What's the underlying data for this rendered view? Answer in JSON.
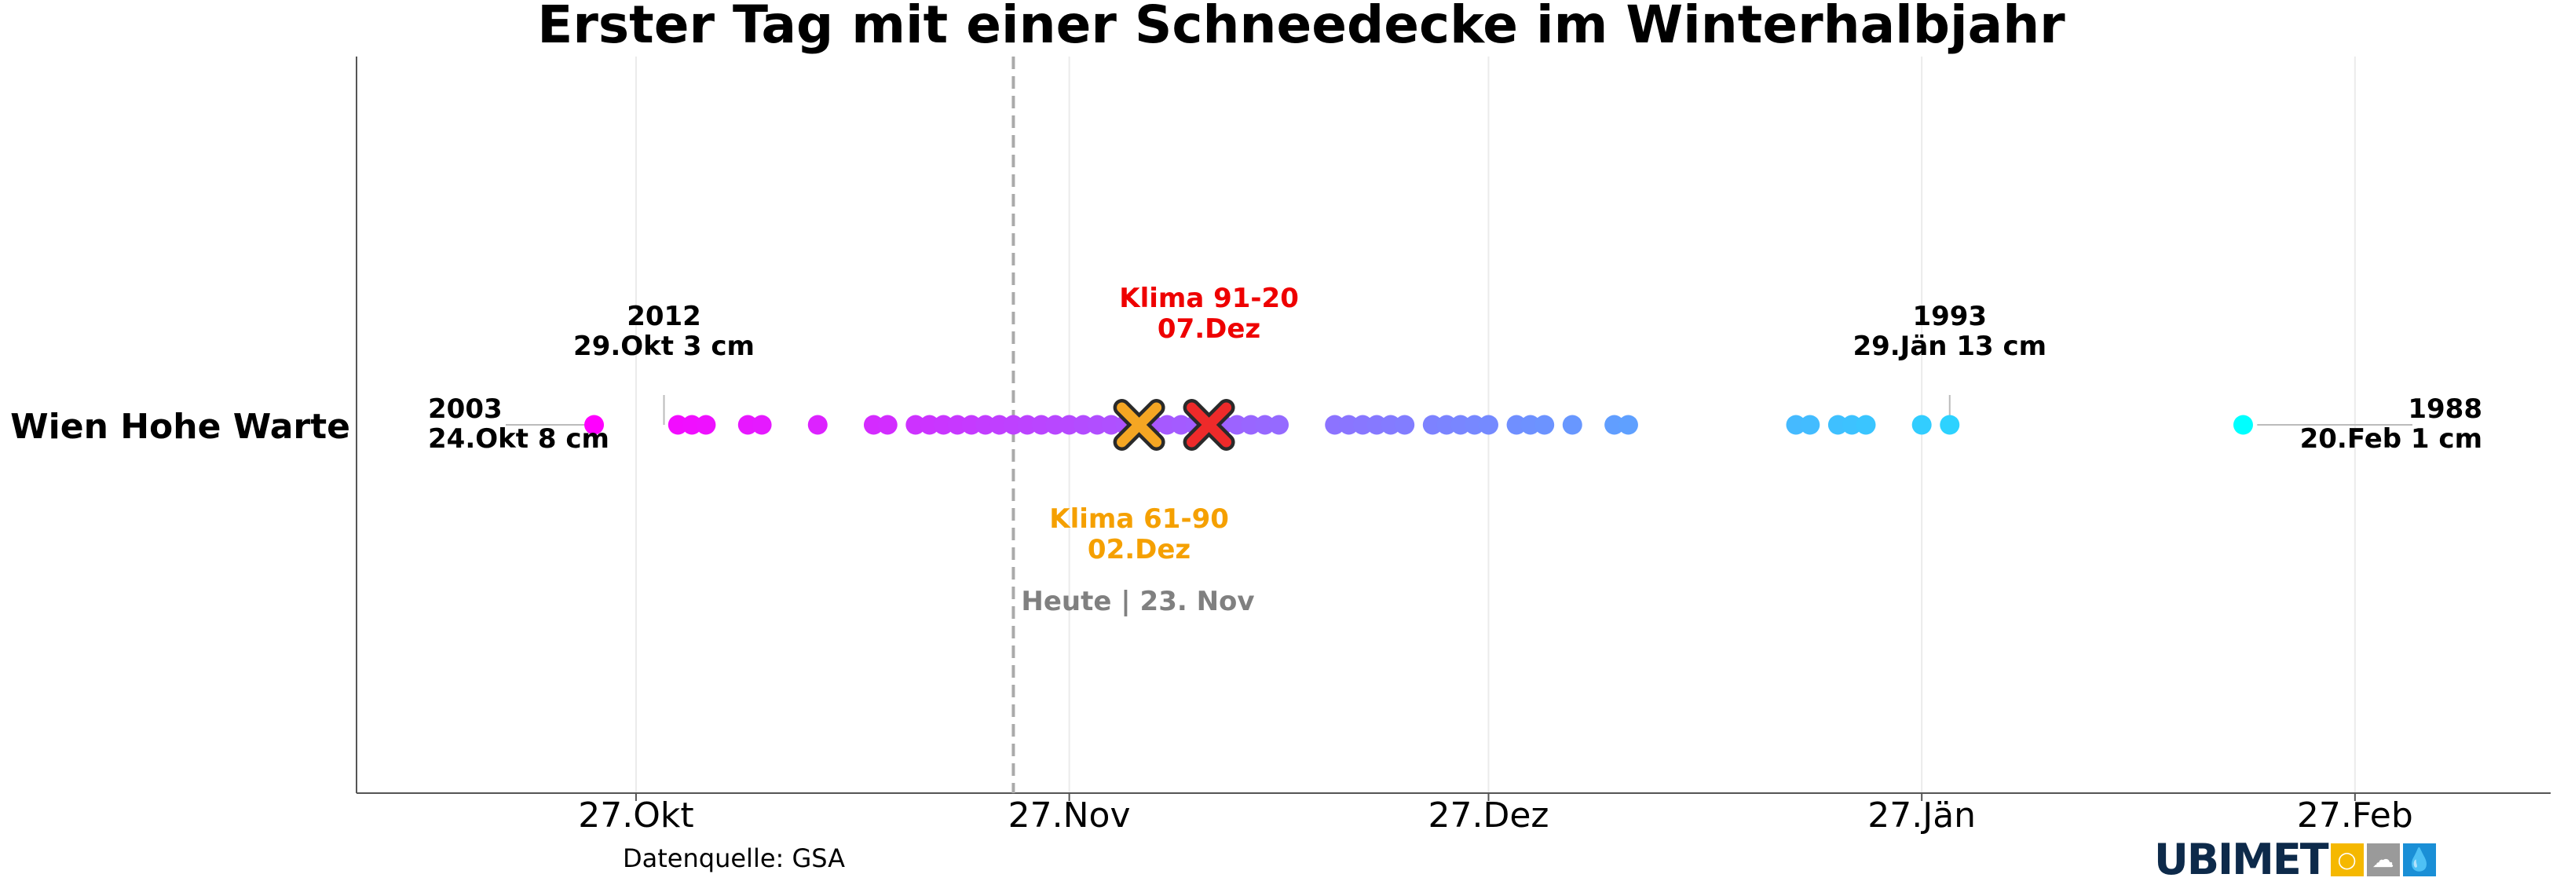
{
  "chart_data": {
    "type": "scatter",
    "title": "Erster Tag mit einer Schneedecke im Winterhalbjahr",
    "station": "Wien Hohe Warte",
    "source": "Datenquelle: GSA",
    "logo": "UBIMET",
    "x_ticks": [
      "27.Okt",
      "27.Nov",
      "27.Dez",
      "27.Jän",
      "27.Feb"
    ],
    "x_tick_dates": [
      "2022-10-27",
      "2022-11-27",
      "2022-12-27",
      "2023-01-27",
      "2023-02-27"
    ],
    "x_range": [
      "2022-10-07",
      "2023-03-13"
    ],
    "grid": "vertical",
    "colormap": "cool",
    "points": [
      "2022-10-24",
      "2022-10-30",
      "2022-10-31",
      "2022-11-01",
      "2022-11-04",
      "2022-11-05",
      "2022-11-09",
      "2022-11-13",
      "2022-11-14",
      "2022-11-16",
      "2022-11-17",
      "2022-11-18",
      "2022-11-19",
      "2022-11-20",
      "2022-11-21",
      "2022-11-22",
      "2022-11-23",
      "2022-11-24",
      "2022-11-25",
      "2022-11-26",
      "2022-11-27",
      "2022-11-28",
      "2022-11-29",
      "2022-11-30",
      "2022-12-01",
      "2022-12-02",
      "2022-12-03",
      "2022-12-04",
      "2022-12-05",
      "2022-12-06",
      "2022-12-07",
      "2022-12-08",
      "2022-12-09",
      "2022-12-10",
      "2022-12-11",
      "2022-12-12",
      "2022-12-16",
      "2022-12-17",
      "2022-12-18",
      "2022-12-19",
      "2022-12-20",
      "2022-12-21",
      "2022-12-23",
      "2022-12-24",
      "2022-12-25",
      "2022-12-26",
      "2022-12-27",
      "2022-12-29",
      "2022-12-30",
      "2022-12-31",
      "2023-01-02",
      "2023-01-05",
      "2023-01-06",
      "2023-01-18",
      "2023-01-19",
      "2023-01-21",
      "2023-01-22",
      "2023-01-23",
      "2023-01-27",
      "2023-01-29",
      "2023-02-19"
    ],
    "annotations": [
      {
        "text1": "2003",
        "text2": "24.Okt 8 cm",
        "date": "2022-10-24",
        "side": "left"
      },
      {
        "text1": "2012",
        "text2": "29.Okt 3 cm",
        "date": "2022-10-29",
        "side": "above"
      },
      {
        "text1": "1993",
        "text2": "29.Jän 13 cm",
        "date": "2023-01-29",
        "side": "above"
      },
      {
        "text1": "1988",
        "text2": "20.Feb 1 cm",
        "date": "2023-02-20",
        "side": "right"
      }
    ],
    "climate": [
      {
        "label": "Klima 61-90",
        "date_label": "02.Dez",
        "date": "2022-12-02",
        "color": "#f5a623",
        "label_color": "#f5a000",
        "position": "below"
      },
      {
        "label": "Klima 91-20",
        "date_label": "07.Dez",
        "date": "2022-12-07",
        "color": "#ee2a2a",
        "label_color": "#ee0000",
        "position": "above"
      }
    ],
    "today": {
      "label": "Heute | 23. Nov",
      "date": "2022-11-23"
    }
  }
}
